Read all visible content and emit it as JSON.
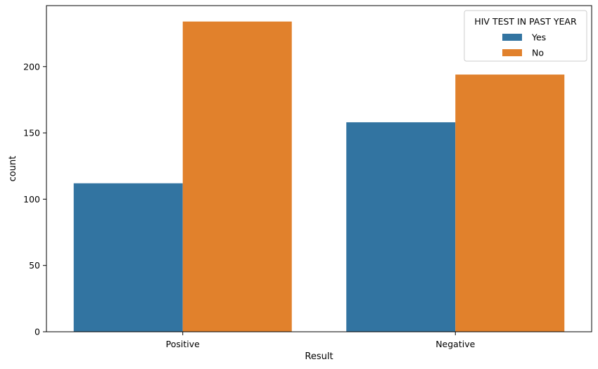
{
  "chart_data": {
    "type": "bar",
    "title": "",
    "xlabel": "Result",
    "ylabel": "count",
    "categories": [
      "Positive",
      "Negative"
    ],
    "ylim": [
      0,
      246
    ],
    "yticks": [
      0,
      50,
      100,
      150,
      200
    ],
    "grid": false,
    "legend": {
      "title": "HIV TEST IN PAST YEAR",
      "placement": "top-right"
    },
    "series": [
      {
        "name": "Yes",
        "color": "#3274a1",
        "values": [
          112,
          158
        ]
      },
      {
        "name": "No",
        "color": "#e1812c",
        "values": [
          234,
          194
        ]
      }
    ]
  }
}
